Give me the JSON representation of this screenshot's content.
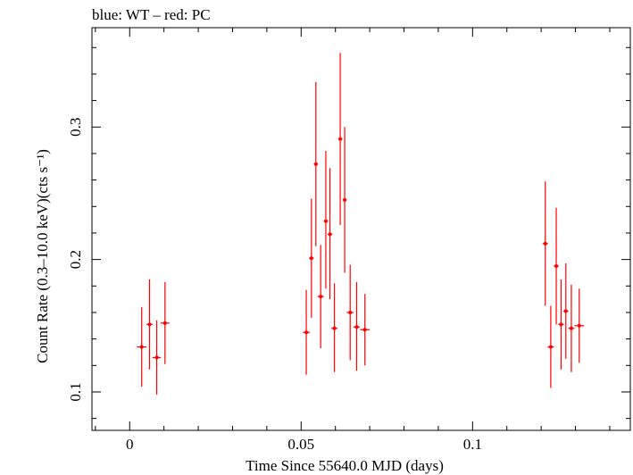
{
  "chart_data": {
    "type": "scatter",
    "title": "blue: WT – red: PC",
    "xlabel": "Time Since 55640.0 MJD (days)",
    "ylabel": "Count Rate (0.3–10.0 keV)(cts s⁻¹)",
    "xlim": [
      -0.011,
      0.146
    ],
    "ylim": [
      0.071,
      0.375
    ],
    "xticks": [
      0,
      0.05,
      0.1
    ],
    "xtick_labels": [
      "0",
      "0.05",
      "0.1"
    ],
    "yticks": [
      0.1,
      0.2,
      0.3
    ],
    "ytick_labels": [
      "0.1",
      "0.2",
      "0.3"
    ],
    "grid": false,
    "series": [
      {
        "name": "PC",
        "color": "#ff0000",
        "points": [
          {
            "x": 0.0035,
            "xerr": 0.0014,
            "y": 0.134,
            "ylo": 0.104,
            "yhi": 0.164
          },
          {
            "x": 0.0058,
            "xerr": 0.0009,
            "y": 0.151,
            "ylo": 0.117,
            "yhi": 0.185
          },
          {
            "x": 0.0079,
            "xerr": 0.0012,
            "y": 0.126,
            "ylo": 0.098,
            "yhi": 0.154
          },
          {
            "x": 0.0103,
            "xerr": 0.0013,
            "y": 0.152,
            "ylo": 0.121,
            "yhi": 0.183
          },
          {
            "x": 0.0515,
            "xerr": 0.001,
            "y": 0.145,
            "ylo": 0.113,
            "yhi": 0.177
          },
          {
            "x": 0.053,
            "xerr": 0.0007,
            "y": 0.201,
            "ylo": 0.156,
            "yhi": 0.246
          },
          {
            "x": 0.0543,
            "xerr": 0.0006,
            "y": 0.272,
            "ylo": 0.21,
            "yhi": 0.334
          },
          {
            "x": 0.0557,
            "xerr": 0.0009,
            "y": 0.172,
            "ylo": 0.133,
            "yhi": 0.211
          },
          {
            "x": 0.0572,
            "xerr": 0.0006,
            "y": 0.229,
            "ylo": 0.178,
            "yhi": 0.282
          },
          {
            "x": 0.0584,
            "xerr": 0.0007,
            "y": 0.219,
            "ylo": 0.17,
            "yhi": 0.269
          },
          {
            "x": 0.0597,
            "xerr": 0.0009,
            "y": 0.148,
            "ylo": 0.115,
            "yhi": 0.182
          },
          {
            "x": 0.0614,
            "xerr": 0.0006,
            "y": 0.291,
            "ylo": 0.226,
            "yhi": 0.356
          },
          {
            "x": 0.0627,
            "xerr": 0.0006,
            "y": 0.245,
            "ylo": 0.19,
            "yhi": 0.3
          },
          {
            "x": 0.0643,
            "xerr": 0.001,
            "y": 0.16,
            "ylo": 0.124,
            "yhi": 0.196
          },
          {
            "x": 0.0662,
            "xerr": 0.0009,
            "y": 0.149,
            "ylo": 0.116,
            "yhi": 0.183
          },
          {
            "x": 0.0686,
            "xerr": 0.0014,
            "y": 0.147,
            "ylo": 0.12,
            "yhi": 0.174
          },
          {
            "x": 0.1212,
            "xerr": 0.0008,
            "y": 0.212,
            "ylo": 0.165,
            "yhi": 0.259
          },
          {
            "x": 0.1228,
            "xerr": 0.0009,
            "y": 0.134,
            "ylo": 0.103,
            "yhi": 0.165
          },
          {
            "x": 0.1244,
            "xerr": 0.0007,
            "y": 0.195,
            "ylo": 0.151,
            "yhi": 0.239
          },
          {
            "x": 0.1258,
            "xerr": 0.0008,
            "y": 0.151,
            "ylo": 0.117,
            "yhi": 0.185
          },
          {
            "x": 0.1272,
            "xerr": 0.0007,
            "y": 0.161,
            "ylo": 0.125,
            "yhi": 0.197
          },
          {
            "x": 0.1288,
            "xerr": 0.0009,
            "y": 0.148,
            "ylo": 0.115,
            "yhi": 0.181
          },
          {
            "x": 0.1311,
            "xerr": 0.0014,
            "y": 0.15,
            "ylo": 0.122,
            "yhi": 0.178
          }
        ]
      }
    ]
  }
}
